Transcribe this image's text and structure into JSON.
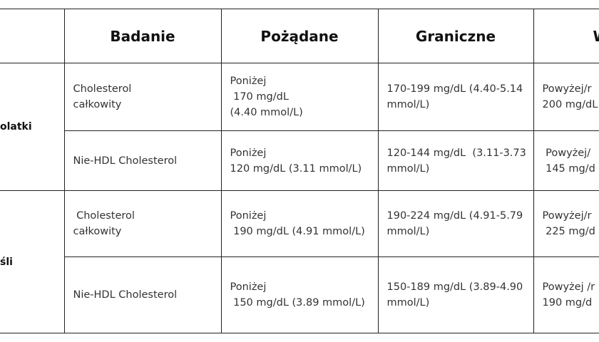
{
  "table": {
    "header": [
      "Badanie",
      "Pożądane",
      "Graniczne",
      "Wy"
    ],
    "groups": [
      {
        "label": "olatki",
        "rows": [
          {
            "test": [
              "Cholesterol",
              "całkowity"
            ],
            "desired": [
              "Poniżej",
              " 170 mg/dL",
              "(4.40 mmol/L)"
            ],
            "borderline": [
              "170-199 mg/dL (4.40-5.14",
              "mmol/L)"
            ],
            "high": [
              "Powyżej/r",
              "200 mg/dL"
            ]
          },
          {
            "test": [
              "Nie-HDL Cholesterol"
            ],
            "desired": [
              "Poniżej",
              "120 mg/dL (3.11 mmol/L)"
            ],
            "borderline": [
              "120-144 mg/dL  (3.11-3.73",
              "mmol/L)"
            ],
            "high": [
              " Powyżej/",
              " 145 mg/d"
            ]
          }
        ]
      },
      {
        "label": "śli",
        "rows": [
          {
            "test": [
              " Cholesterol",
              "całkowity"
            ],
            "desired": [
              "Poniżej",
              " 190 mg/dL (4.91 mmol/L)"
            ],
            "borderline": [
              "190-224 mg/dL (4.91-5.79",
              "mmol/L)"
            ],
            "high": [
              "Powyżej/r",
              " 225 mg/d"
            ]
          },
          {
            "test": [
              "Nie-HDL Cholesterol"
            ],
            "desired": [
              "Poniżej",
              " 150 mg/dL (3.89 mmol/L)"
            ],
            "borderline": [
              "150-189 mg/dL (3.89-4.90",
              "mmol/L)"
            ],
            "high": [
              "Powyżej /r",
              "190 mg/d"
            ]
          }
        ]
      }
    ]
  }
}
